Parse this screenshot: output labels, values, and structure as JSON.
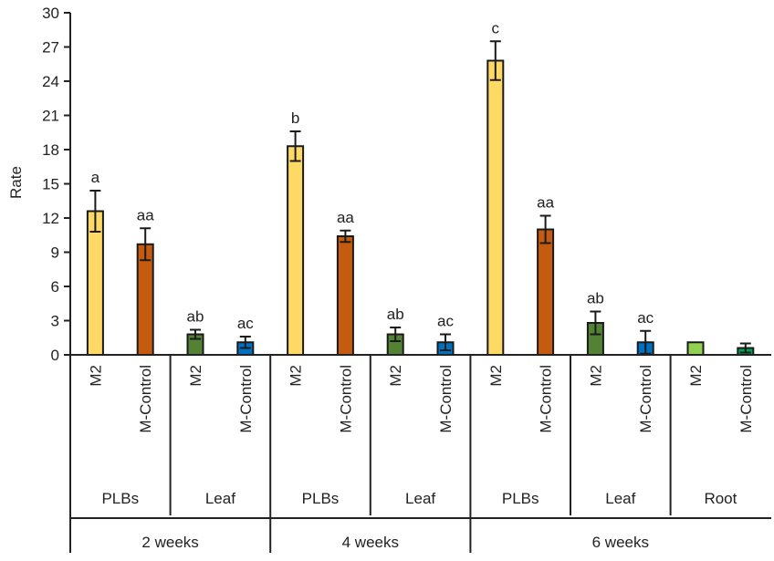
{
  "chart_data": {
    "type": "bar",
    "title": "",
    "ylabel": "Rate",
    "xlabel": "",
    "ylim": [
      0,
      30
    ],
    "yticks": [
      0,
      3,
      6,
      9,
      12,
      15,
      18,
      21,
      24,
      27,
      30
    ],
    "grid": false,
    "colors": {
      "M2_PLBs": "#FFD966",
      "MControl_PLBs": "#C55A11",
      "M2_Leaf": "#548235",
      "MControl_Leaf": "#0070C0",
      "M2_Root": "#92D050",
      "MControl_Root": "#00A050",
      "axis": "#222222"
    },
    "groups": [
      {
        "time": "2 weeks",
        "tissues": [
          {
            "tissue": "PLBs",
            "bars": [
              {
                "label": "M2",
                "value": 12.6,
                "error": 1.8,
                "sig": "a",
                "color_key": "M2_PLBs"
              },
              {
                "label": "M-Control",
                "value": 9.7,
                "error": 1.4,
                "sig": "aa",
                "color_key": "MControl_PLBs"
              }
            ]
          },
          {
            "tissue": "Leaf",
            "bars": [
              {
                "label": "M2",
                "value": 1.8,
                "error": 0.4,
                "sig": "ab",
                "color_key": "M2_Leaf"
              },
              {
                "label": "M-Control",
                "value": 1.1,
                "error": 0.5,
                "sig": "ac",
                "color_key": "MControl_Leaf"
              }
            ]
          }
        ]
      },
      {
        "time": "4 weeks",
        "tissues": [
          {
            "tissue": "PLBs",
            "bars": [
              {
                "label": "M2",
                "value": 18.3,
                "error": 1.3,
                "sig": "b",
                "color_key": "M2_PLBs"
              },
              {
                "label": "M-Control",
                "value": 10.4,
                "error": 0.5,
                "sig": "aa",
                "color_key": "MControl_PLBs"
              }
            ]
          },
          {
            "tissue": "Leaf",
            "bars": [
              {
                "label": "M2",
                "value": 1.8,
                "error": 0.6,
                "sig": "ab",
                "color_key": "M2_Leaf"
              },
              {
                "label": "M-Control",
                "value": 1.1,
                "error": 0.7,
                "sig": "ac",
                "color_key": "MControl_Leaf"
              }
            ]
          }
        ]
      },
      {
        "time": "6 weeks",
        "tissues": [
          {
            "tissue": "PLBs",
            "bars": [
              {
                "label": "M2",
                "value": 25.8,
                "error": 1.7,
                "sig": "c",
                "color_key": "M2_PLBs"
              },
              {
                "label": "M-Control",
                "value": 11.0,
                "error": 1.2,
                "sig": "aa",
                "color_key": "MControl_PLBs"
              }
            ]
          },
          {
            "tissue": "Leaf",
            "bars": [
              {
                "label": "M2",
                "value": 2.8,
                "error": 1.0,
                "sig": "ab",
                "color_key": "M2_Leaf"
              },
              {
                "label": "M-Control",
                "value": 1.1,
                "error": 1.0,
                "sig": "ac",
                "color_key": "MControl_Leaf"
              }
            ]
          },
          {
            "tissue": "Root",
            "bars": [
              {
                "label": "M2",
                "value": 1.1,
                "error": 0,
                "sig": "",
                "color_key": "M2_Root"
              },
              {
                "label": "M-Control",
                "value": 0.6,
                "error": 0.4,
                "sig": "",
                "color_key": "MControl_Root"
              }
            ]
          }
        ]
      }
    ]
  }
}
